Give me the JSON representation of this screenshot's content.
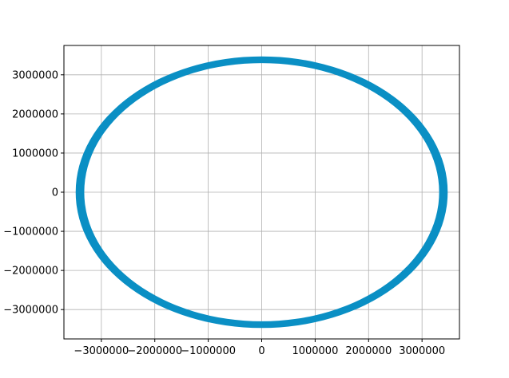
{
  "chart_data": {
    "type": "scatter",
    "title": "",
    "xlabel": "",
    "ylabel": "",
    "grid": true,
    "legend": "none",
    "xlim": [
      -3700000,
      3700000
    ],
    "ylim": [
      -3750000,
      3750000
    ],
    "x_ticks": [
      -3000000,
      -2000000,
      -1000000,
      0,
      1000000,
      2000000,
      3000000
    ],
    "x_tick_labels": [
      "−3000000",
      "−2000000",
      "−1000000",
      "0",
      "1000000",
      "2000000",
      "3000000"
    ],
    "y_ticks": [
      -3000000,
      -2000000,
      -1000000,
      0,
      1000000,
      2000000,
      3000000
    ],
    "y_tick_labels": [
      "−3000000",
      "−2000000",
      "−1000000",
      "0",
      "1000000",
      "2000000",
      "3000000"
    ],
    "series": [
      {
        "color": "#0a8fc4",
        "shape": "ring",
        "center": [
          0,
          0
        ],
        "outer_radius_x": 3480000,
        "inner_radius_x": 3320000,
        "outer_radius_y": 3470000,
        "inner_radius_y": 3300000,
        "points": [
          [
            3400000,
            0
          ],
          [
            3200000,
            1150000
          ],
          [
            2940000,
            1700000
          ],
          [
            2400000,
            2400000
          ],
          [
            1700000,
            2940000
          ],
          [
            0,
            3400000
          ],
          [
            -1700000,
            2940000
          ],
          [
            -2400000,
            2400000
          ],
          [
            -2940000,
            1700000
          ],
          [
            -3400000,
            0
          ],
          [
            -2940000,
            -1700000
          ],
          [
            -2400000,
            -2400000
          ],
          [
            -1700000,
            -2940000
          ],
          [
            0,
            -3400000
          ],
          [
            1700000,
            -2940000
          ],
          [
            2400000,
            -2400000
          ],
          [
            2940000,
            -1700000
          ]
        ]
      }
    ]
  }
}
